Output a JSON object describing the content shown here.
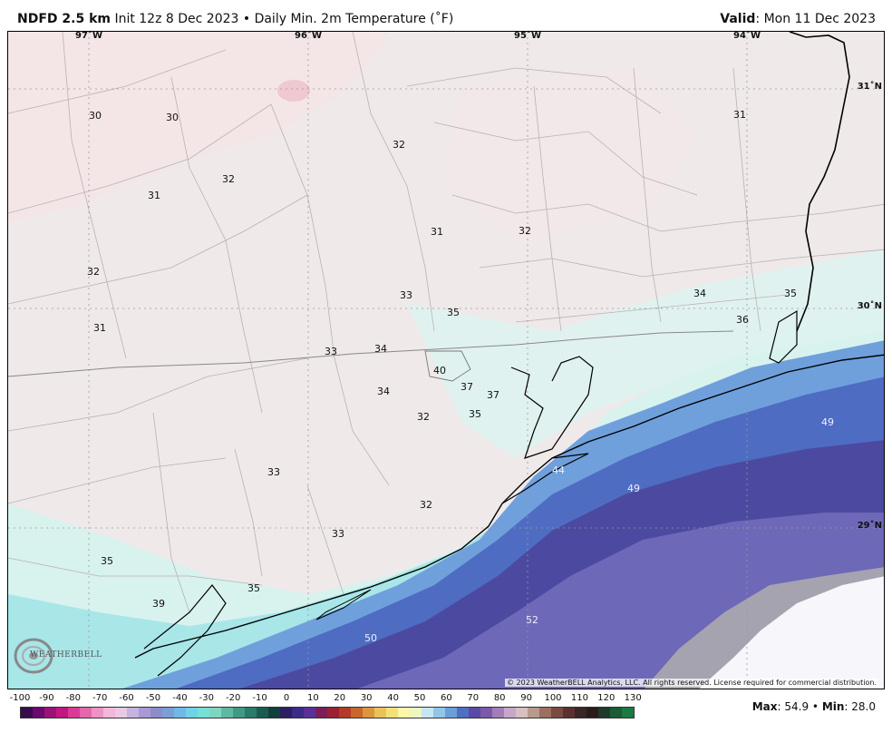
{
  "header": {
    "model": "NDFD 2.5 km",
    "title_rest": "Init 12z 8 Dec 2023 • Daily Min. 2m Temperature (˚F)",
    "valid_label": "Valid",
    "valid_value": ": Mon 11 Dec 2023"
  },
  "map": {
    "longitude_labels": [
      "97˚W",
      "96˚W",
      "95˚W",
      "94˚W"
    ],
    "latitude_labels": [
      "31˚N",
      "30˚N",
      "29˚N"
    ],
    "station_values": [
      "30",
      "30",
      "32",
      "31",
      "31",
      "32",
      "31",
      "32",
      "32",
      "31",
      "33",
      "35",
      "34",
      "35",
      "36",
      "33",
      "34",
      "40",
      "37",
      "37",
      "34",
      "32",
      "35",
      "49",
      "44",
      "49",
      "33",
      "32",
      "33",
      "35",
      "35",
      "39",
      "50",
      "52"
    ],
    "logo_text": "WEATHERBELL",
    "copyright": "© 2023 WeatherBELL Analytics, LLC. All rights reserved. License required for commercial distribution."
  },
  "colorbar": {
    "labels": [
      "-100",
      "-90",
      "-80",
      "-70",
      "-60",
      "-50",
      "-40",
      "-30",
      "-20",
      "-10",
      "0",
      "10",
      "20",
      "30",
      "40",
      "50",
      "60",
      "70",
      "80",
      "90",
      "100",
      "110",
      "120",
      "130"
    ],
    "colors": [
      "#3b0a4f",
      "#6a0a6e",
      "#9a1276",
      "#c21680",
      "#db3a94",
      "#e567ad",
      "#ed92c6",
      "#f2b7da",
      "#e9c9e6",
      "#c8b3e0",
      "#a79ad5",
      "#8c8ccb",
      "#7a9fd6",
      "#6fb9e4",
      "#6fd2e6",
      "#76e0d8",
      "#7fd6bf",
      "#5fb9a0",
      "#3e9a84",
      "#2a7b6a",
      "#1b5c52",
      "#113f3c",
      "#2a2060",
      "#3d2a88",
      "#5a2f9a",
      "#7a1e5a",
      "#9a2034",
      "#b43a2a",
      "#c8662e",
      "#dc9640",
      "#e9c25a",
      "#f2e17a",
      "#fff6a8",
      "#eef7c0",
      "#c5e6f2",
      "#93c5e8",
      "#6a9ed8",
      "#4f6fc4",
      "#5a4aa6",
      "#7c5aa8",
      "#a37cb8",
      "#c9a6c9",
      "#d8c0c0",
      "#b89a8a",
      "#9a7060",
      "#7a4b40",
      "#5a3030",
      "#3a2626",
      "#2a1c1c",
      "#1f3a2a",
      "#1c5c34",
      "#1a7a40"
    ]
  },
  "stats": {
    "max_label": "Max",
    "max_value": ": 54.9 • ",
    "min_label": "Min",
    "min_value": ": 28.0"
  }
}
